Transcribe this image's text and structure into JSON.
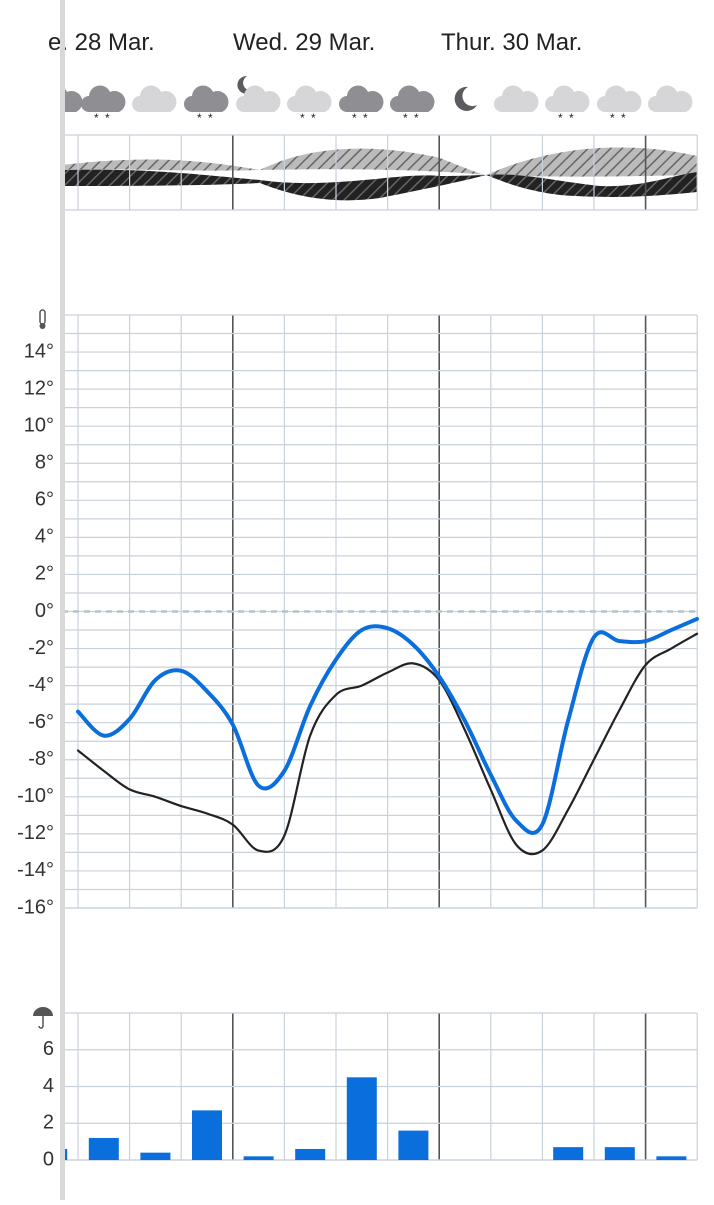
{
  "header": {
    "days": [
      "e. 28 Mar.",
      "Wed. 29 Mar.",
      "Thur. 30 Mar."
    ]
  },
  "chart_data": [
    {
      "type": "line",
      "categories": [
        null,
        null,
        null,
        null,
        null,
        null,
        null,
        null,
        null,
        null,
        null,
        null,
        null,
        null,
        null,
        null,
        null,
        null,
        null,
        null,
        null,
        null,
        null,
        null,
        null
      ],
      "series": [
        {
          "color": "#0a6fdc",
          "values": [
            -5.4,
            -6.7,
            -5.8,
            -3.7,
            -3.2,
            -4.3,
            -6.1,
            -9.4,
            -8.6,
            -5.1,
            -2.6,
            -1.0,
            -0.9,
            -1.8,
            -3.5,
            -5.9,
            -8.8,
            -11.3,
            -11.5,
            -5.9,
            -1.4,
            -1.6,
            -1.6,
            -1.0,
            -0.4
          ]
        },
        {
          "color": "#222222",
          "values": [
            -7.5,
            -8.6,
            -9.6,
            -10.0,
            -10.5,
            -10.9,
            -11.5,
            -12.9,
            -12.1,
            -6.7,
            -4.5,
            -4.0,
            -3.3,
            -2.8,
            -3.7,
            -6.4,
            -9.6,
            -12.6,
            -12.9,
            -10.7,
            -8.0,
            -5.3,
            -2.9,
            -2.0,
            -1.2
          ]
        }
      ],
      "ylim": [
        -16,
        16
      ],
      "yticks": [
        {
          "value": 14,
          "label": "14°"
        },
        {
          "value": 12,
          "label": "12°"
        },
        {
          "value": 10,
          "label": "10°"
        },
        {
          "value": 8,
          "label": "8°"
        },
        {
          "value": 6,
          "label": "6°"
        },
        {
          "value": 4,
          "label": "4°"
        },
        {
          "value": 2,
          "label": "2°"
        },
        {
          "value": 0,
          "label": "0°"
        },
        {
          "value": -2,
          "label": "-2°"
        },
        {
          "value": -4,
          "label": "-4°"
        },
        {
          "value": -6,
          "label": "-6°"
        },
        {
          "value": -8,
          "label": "-8°"
        },
        {
          "value": -10,
          "label": "-10°"
        },
        {
          "value": -12,
          "label": "-12°"
        },
        {
          "value": -14,
          "label": "-14°"
        },
        {
          "value": -16,
          "label": "-16°"
        }
      ],
      "grid": true
    },
    {
      "type": "bar",
      "categories": [
        null,
        null,
        null,
        null,
        null,
        null,
        null,
        null,
        null,
        null,
        null,
        null,
        null
      ],
      "values": [
        0.6,
        1.2,
        0.4,
        2.7,
        0.2,
        0.6,
        4.5,
        1.6,
        0,
        0,
        0.7,
        0.7,
        0.2
      ],
      "color": "#0a6fdc",
      "ylim": [
        0,
        8
      ],
      "yticks": [
        0,
        2,
        4,
        6
      ],
      "grid": true
    }
  ]
}
